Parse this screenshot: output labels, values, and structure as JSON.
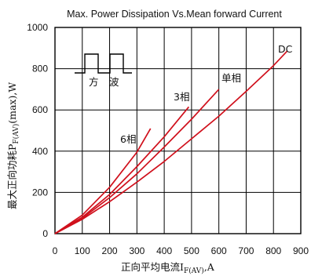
{
  "chart_data": {
    "type": "line",
    "title": "Max. Power Dissipation Vs.Mean forward Current",
    "xlabel_main": "正向平均电流I",
    "xlabel_sub": "F(AV)",
    "xlabel_tail": ",A",
    "ylabel_main": "最大正向功耗P",
    "ylabel_sub": "F(AV)",
    "ylabel_tail": "(max),W",
    "xlim": [
      0,
      900
    ],
    "ylim": [
      0,
      1000
    ],
    "x_ticks": [
      "0",
      "100",
      "200",
      "300",
      "400",
      "500",
      "600",
      "700",
      "800",
      "900"
    ],
    "y_ticks": [
      "0",
      "200",
      "400",
      "600",
      "800",
      "1000"
    ],
    "grid": true,
    "series": [
      {
        "name": "DC",
        "x": [
          0,
          100,
          200,
          300,
          400,
          500,
          600,
          700,
          800,
          850
        ],
        "y": [
          0,
          70,
          155,
          250,
          350,
          460,
          570,
          690,
          815,
          885
        ]
      },
      {
        "name": "单相",
        "x": [
          0,
          100,
          200,
          300,
          400,
          500,
          600
        ],
        "y": [
          0,
          75,
          175,
          290,
          420,
          555,
          700
        ]
      },
      {
        "name": "3相",
        "x": [
          0,
          100,
          200,
          300,
          400,
          490
        ],
        "y": [
          0,
          80,
          190,
          325,
          470,
          615
        ]
      },
      {
        "name": "6相",
        "x": [
          0,
          100,
          200,
          300,
          350
        ],
        "y": [
          0,
          90,
          225,
          395,
          510
        ]
      }
    ],
    "inset": {
      "label_left": "方",
      "label_right": "波"
    },
    "color": "#d0101c"
  }
}
